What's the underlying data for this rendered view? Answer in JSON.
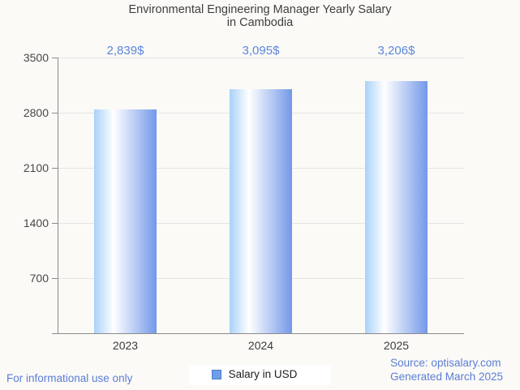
{
  "chart": {
    "title_line1": "Environmental Engineering Manager Yearly Salary",
    "title_line2": "in Cambodia"
  },
  "chart_data": {
    "type": "bar",
    "title": "Environmental Engineering Manager Yearly Salary in Cambodia",
    "categories": [
      "2023",
      "2024",
      "2025"
    ],
    "values": [
      2839,
      3095,
      3206
    ],
    "value_labels": [
      "2,839$",
      "3,095$",
      "3,206$"
    ],
    "series_name": "Salary in USD",
    "xlabel": "",
    "ylabel": "",
    "ylim": [
      0,
      3500
    ],
    "y_ticks": [
      3500,
      2800,
      2100,
      1400,
      700
    ],
    "grid": true,
    "legend_position": "bottom",
    "bar_gradient": [
      "#a9d1f9",
      "#ffffff",
      "#7398e8"
    ],
    "bar_gradient_white_stop": 31
  },
  "legend": {
    "label": "Salary in USD",
    "marker_color": "#6d9eea"
  },
  "footer": {
    "disclaimer": "For informational use only",
    "source": "Source: optisalary.com",
    "generated": "Generated March 2025"
  },
  "colors": {
    "background": "#fbfaf7",
    "title_text": "#3e3e3e",
    "value_text": "#5b86dc",
    "footer_text": "#5a7dd6",
    "axis_line": "#8b8b8b",
    "gridline": "#e4e4e4"
  }
}
